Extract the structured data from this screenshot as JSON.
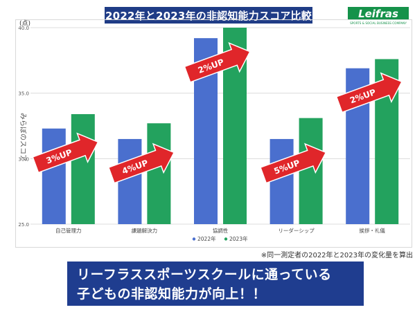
{
  "header": {
    "title": "2022年と2023年の非認知能力スコア比較"
  },
  "logo": {
    "text": "Leifras",
    "tagline": "SPORTS & SOCIAL BUSINESS COMPANY",
    "color": "#15924a"
  },
  "chart_data": {
    "type": "bar",
    "title": "",
    "ylabel": "みらぼのスコア",
    "unit_label": "(点)",
    "ylim": [
      25,
      40
    ],
    "yticks": [
      "40.0",
      "35.0",
      "30.0",
      "25.0"
    ],
    "ytick_values": [
      40,
      35,
      30,
      25
    ],
    "categories": [
      "自己管理力",
      "課題解決力",
      "協調性",
      "リーダーシップ",
      "挨拶・礼儀"
    ],
    "series": [
      {
        "name": "2022年",
        "values": [
          32.3,
          31.5,
          39.2,
          31.5,
          36.9
        ],
        "color": "#4a6fce"
      },
      {
        "name": "2023年",
        "values": [
          33.4,
          32.7,
          40.0,
          33.1,
          37.6
        ],
        "color": "#23a25e"
      }
    ],
    "annotations": [
      "3%UP",
      "4%UP",
      "2%UP",
      "5%UP",
      "2%UP"
    ],
    "annotation_color": "#e0262a",
    "grid": true,
    "legend_placement": "bottom-center"
  },
  "footnote": "※同一測定者の2022年と2023年の変化量を算出",
  "banner": {
    "line1": "リーフラススポーツスクールに通っている",
    "line2": "子どもの非認知能力が向上！！"
  }
}
